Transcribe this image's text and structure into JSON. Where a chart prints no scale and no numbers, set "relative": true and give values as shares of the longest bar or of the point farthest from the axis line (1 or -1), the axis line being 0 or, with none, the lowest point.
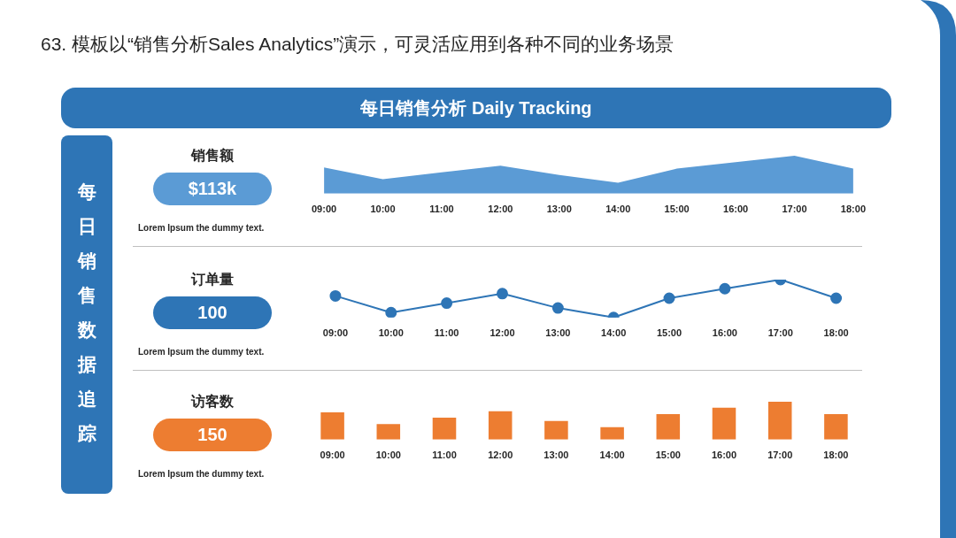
{
  "chart_data": [
    {
      "type": "area",
      "title": "销售额",
      "relative": true,
      "color": "#5b9bd5",
      "categories": [
        "09:00",
        "10:00",
        "11:00",
        "12:00",
        "13:00",
        "14:00",
        "15:00",
        "16:00",
        "17:00",
        "18:00"
      ],
      "values": [
        0.69,
        0.38,
        0.56,
        0.74,
        0.49,
        0.29,
        0.66,
        0.83,
        1,
        0.66
      ],
      "annotations": [
        "63. 模板以“销售分析Sales Analytics”演示，可灵活应用到各种不同的业务场景",
        "每日销售分析 Daily Tracking",
        "每日销售数据追踪",
        "$113k",
        "Lorem Ipsum the dummy text."
      ],
      "legend": false,
      "grid": false
    },
    {
      "type": "line",
      "title": "订单量",
      "relative": true,
      "color": "#2e75b6",
      "marker": "circle",
      "categories": [
        "09:00",
        "10:00",
        "11:00",
        "12:00",
        "13:00",
        "14:00",
        "15:00",
        "16:00",
        "17:00",
        "18:00"
      ],
      "values": [
        0.57,
        0.13,
        0.38,
        0.63,
        0.25,
        0,
        0.51,
        0.76,
        1,
        0.51
      ],
      "annotations": [
        "100",
        "Lorem Ipsum the dummy text."
      ],
      "legend": false,
      "grid": false
    },
    {
      "type": "bar",
      "title": "访客数",
      "relative": true,
      "color": "#ed7d31",
      "categories": [
        "09:00",
        "10:00",
        "11:00",
        "12:00",
        "13:00",
        "14:00",
        "15:00",
        "16:00",
        "17:00",
        "18:00"
      ],
      "values": [
        0.72,
        0.41,
        0.58,
        0.75,
        0.49,
        0.33,
        0.67,
        0.84,
        1,
        0.67
      ],
      "annotations": [
        "150",
        "Lorem Ipsum the dummy text."
      ],
      "legend": false,
      "grid": false
    }
  ]
}
